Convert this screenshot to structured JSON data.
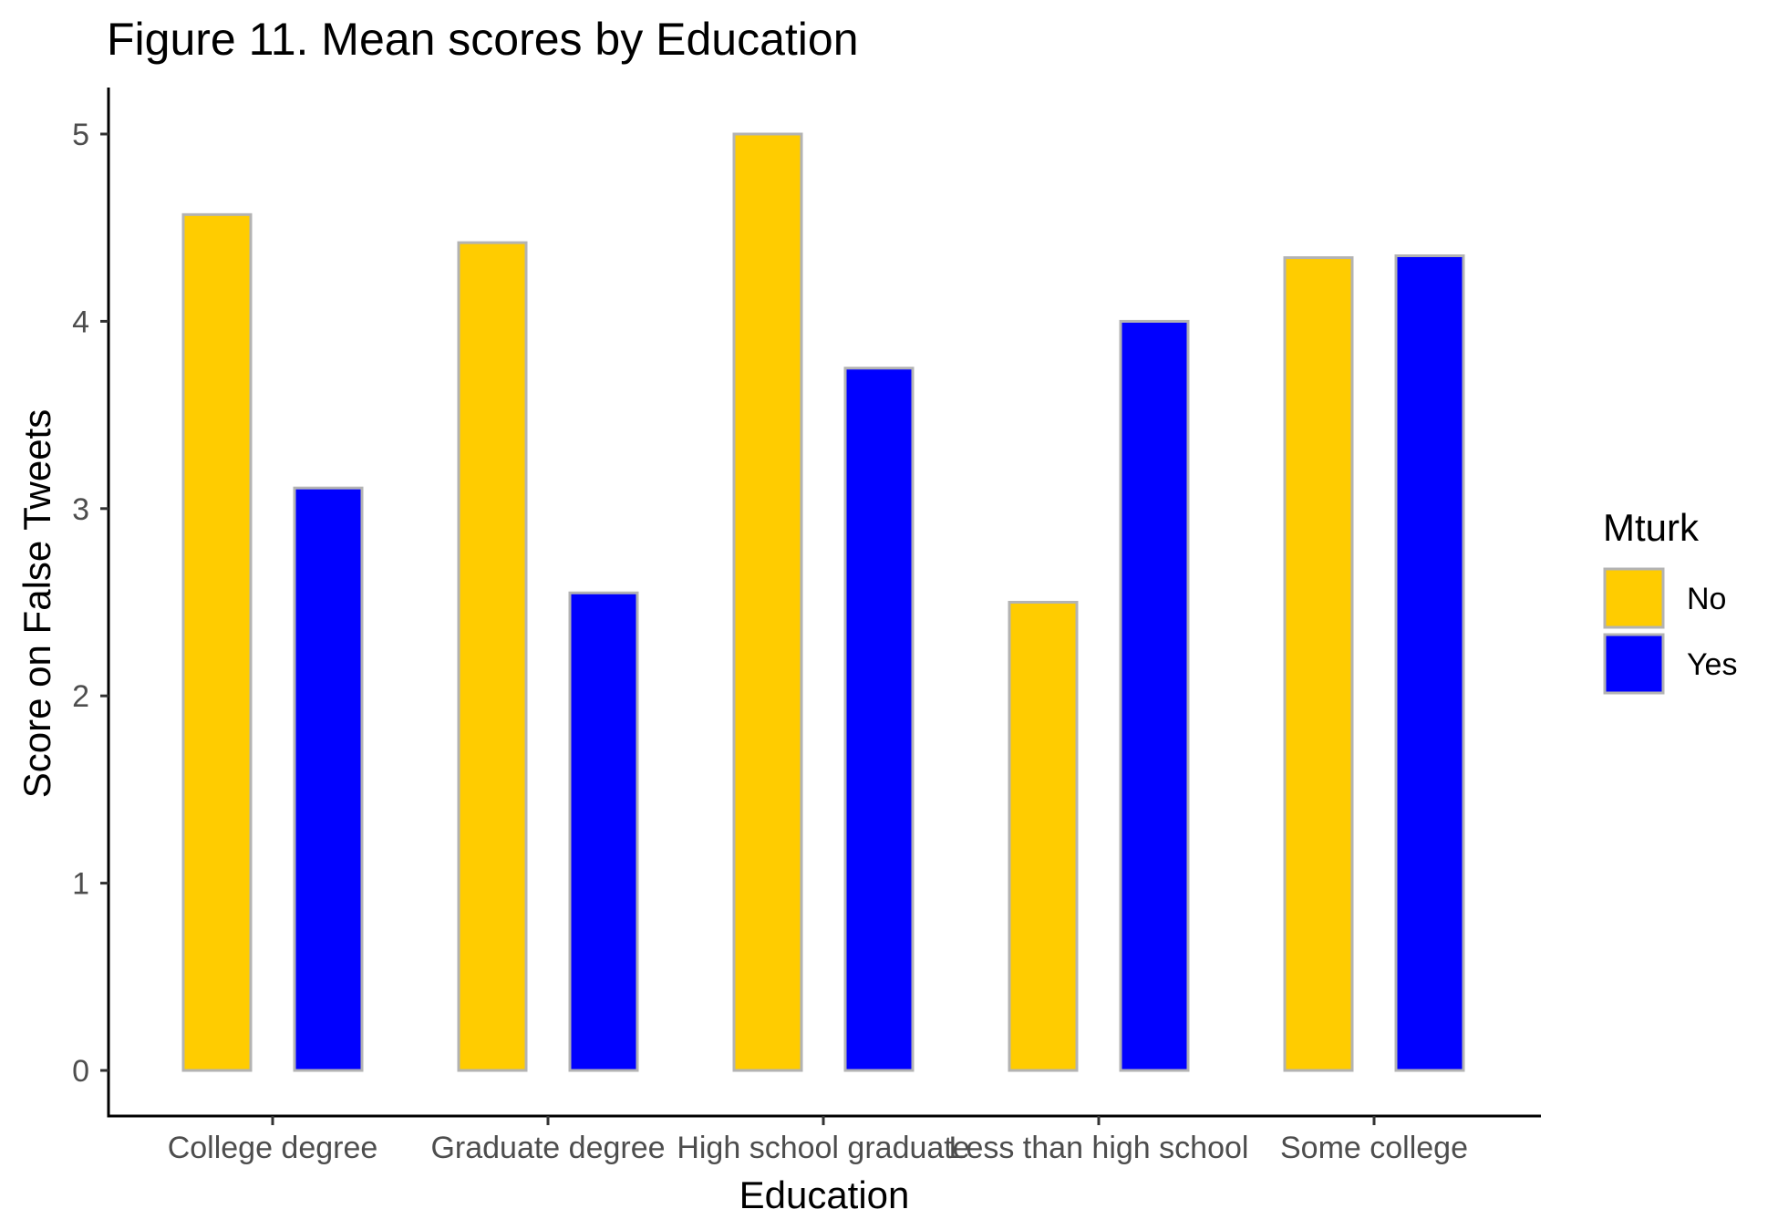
{
  "chart_data": {
    "type": "bar",
    "title": "Figure 11. Mean scores by Education",
    "xlabel": "Education",
    "ylabel": "Score on False Tweets",
    "categories": [
      "College degree",
      "Graduate degree",
      "High school graduate",
      "Less than high school",
      "Some college"
    ],
    "series": [
      {
        "name": "No",
        "color": "#FFCC00",
        "values": [
          4.57,
          4.42,
          5.0,
          2.5,
          4.34
        ]
      },
      {
        "name": "Yes",
        "color": "#0000FF",
        "values": [
          3.11,
          2.55,
          3.75,
          4.0,
          4.35
        ]
      }
    ],
    "ylim": [
      0,
      5.25
    ],
    "yticks": [
      0,
      1,
      2,
      3,
      4,
      5
    ],
    "bar_outline_color": "#B3B3B3",
    "grid": false,
    "legend": {
      "title": "Mturk",
      "placement": "right",
      "entries": [
        "No",
        "Yes"
      ]
    }
  }
}
